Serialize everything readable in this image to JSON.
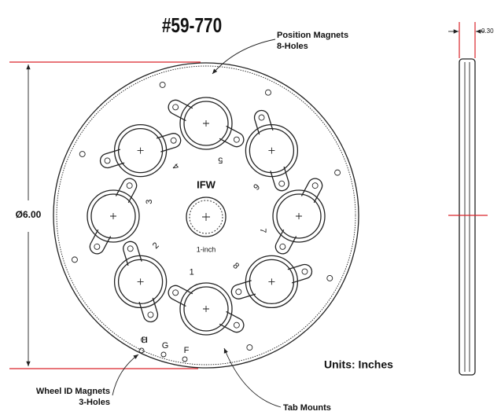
{
  "title": "#59-770",
  "callouts": {
    "position_magnets": [
      "Position Magnets",
      "8-Holes"
    ],
    "wheel_id_magnets": [
      "Wheel ID Magnets",
      "3-Holes"
    ],
    "tab_mounts": "Tab Mounts"
  },
  "dimensions": {
    "diameter": "Ø6.00",
    "thickness": "0.30"
  },
  "center": {
    "label": "IFW",
    "size": "1-inch"
  },
  "positions": [
    "1",
    "2",
    "3",
    "4",
    "5",
    "6",
    "7",
    "8"
  ],
  "id_holes": [
    "H",
    "G",
    "F"
  ],
  "units": "Units: Inches"
}
